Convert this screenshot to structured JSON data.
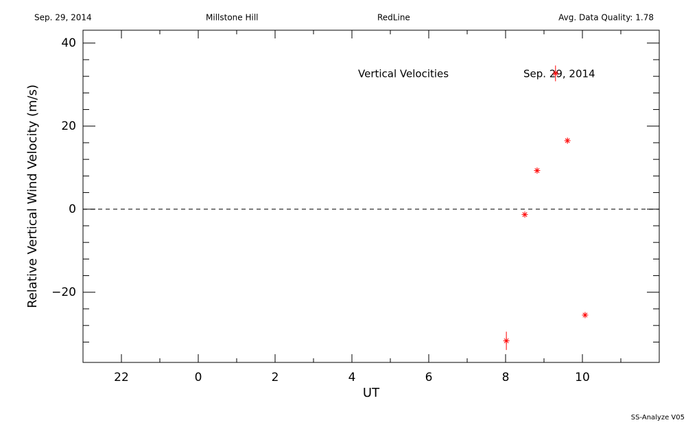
{
  "chart_data": {
    "type": "scatter",
    "header": {
      "date": "Sep. 29, 2014",
      "site": "Millstone Hill",
      "filter": "RedLine",
      "quality": "Avg. Data Quality: 1.78"
    },
    "annotations": [
      "Vertical Velocities",
      "Sep. 29, 2014"
    ],
    "footer": "SS-Analyze V05",
    "x_label": "UT",
    "y_label": "Relative Vertical Wind Velocity (m/s)",
    "x": [
      8.02,
      8.5,
      8.82,
      9.3,
      9.61,
      10.07
    ],
    "values": [
      -31.7,
      -1.3,
      9.3,
      32.7,
      16.5,
      -25.5
    ],
    "errors": [
      2.2,
      0.6,
      0.6,
      1.9,
      0.6,
      0.5
    ],
    "color": "#ff0000",
    "xlim": [
      -3,
      12
    ],
    "xticks": [
      {
        "value": -2,
        "label": "22"
      },
      0,
      2,
      4,
      6,
      8,
      10
    ],
    "xminorticks": [
      -1,
      1,
      3,
      5,
      7,
      9,
      11
    ],
    "ylim": [
      -36.9,
      43.1
    ],
    "yticks": [
      {
        "value": -20,
        "label": "−20"
      },
      0,
      20,
      40
    ],
    "yminorticks": [
      -32,
      -28,
      -24,
      -16,
      -12,
      -8,
      -4,
      4,
      8,
      12,
      16,
      24,
      28,
      32,
      36
    ],
    "reference_line": 0
  }
}
